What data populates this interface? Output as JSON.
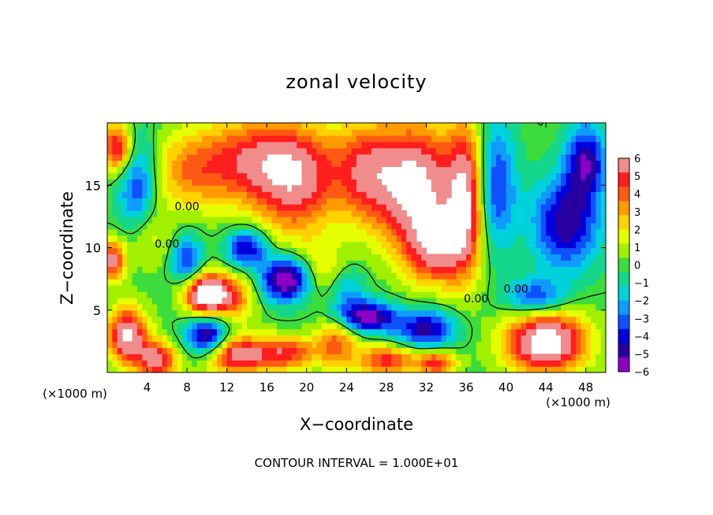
{
  "chart_data": {
    "type": "heatmap",
    "title": "zonal velocity",
    "xlabel": "X−coordinate",
    "ylabel": "Z−coordinate",
    "x_unit_left": "(×1000 m)",
    "x_unit_right": "(×1000 m)",
    "footer": "CONTOUR INTERVAL = 1.000E+01",
    "xlim": [
      0,
      50
    ],
    "ylim": [
      0,
      20
    ],
    "x_ticks": [
      4,
      8,
      12,
      16,
      20,
      24,
      28,
      32,
      36,
      40,
      44,
      48
    ],
    "x_tick_labels": [
      "4",
      "8",
      "12",
      "16",
      "20",
      "24",
      "28",
      "32",
      "36",
      "40",
      "44",
      "48"
    ],
    "y_ticks": [
      5,
      10,
      15
    ],
    "y_tick_labels": [
      "5",
      "10",
      "15"
    ],
    "colorbar": {
      "min": -6,
      "max": 6,
      "ticks": [
        6,
        5,
        4,
        3,
        2,
        1,
        0,
        -1,
        -2,
        -3,
        -4,
        -5,
        -6
      ],
      "tick_labels": [
        "6",
        "5",
        "4",
        "3",
        "2",
        "1",
        "0",
        "−1",
        "−2",
        "−3",
        "−4",
        "−5",
        "−6"
      ],
      "colors": [
        "#f08c8c",
        "#ff1e1e",
        "#ff5a14",
        "#ff9b00",
        "#ffd200",
        "#e6ff00",
        "#a0f000",
        "#3cdc3c",
        "#14d78c",
        "#00d2dc",
        "#0f9bff",
        "#0f50ff",
        "#0000dc",
        "#2800a0",
        "#8c00c8"
      ]
    },
    "contour_labels": [
      {
        "text": "0.00",
        "x": 8.0,
        "y": 13.0
      },
      {
        "text": "0.00",
        "x": 6.0,
        "y": 10.0
      },
      {
        "text": "0.00",
        "x": 37.0,
        "y": 5.6
      },
      {
        "text": "0.00",
        "x": 41.0,
        "y": 6.4
      }
    ],
    "blobs": [
      {
        "x": 16,
        "y": 17,
        "sx": 7,
        "sy": 3.5,
        "a": 5.5
      },
      {
        "x": 19,
        "y": 14,
        "sx": 4,
        "sy": 4,
        "a": 3.5
      },
      {
        "x": 8,
        "y": 16,
        "sx": 4,
        "sy": 3,
        "a": 2.5
      },
      {
        "x": 26,
        "y": 16,
        "sx": 3,
        "sy": 4,
        "a": 4.0
      },
      {
        "x": 31,
        "y": 15,
        "sx": 4,
        "sy": 5,
        "a": 7.0
      },
      {
        "x": 33,
        "y": 10,
        "sx": 3,
        "sy": 3,
        "a": 5.0
      },
      {
        "x": 36,
        "y": 14,
        "sx": 1.8,
        "sy": 6,
        "a": 6.0
      },
      {
        "x": 10,
        "y": 6.3,
        "sx": 2.2,
        "sy": 1.6,
        "a": 9.0
      },
      {
        "x": 13,
        "y": 6.0,
        "sx": 2,
        "sy": 2,
        "a": 3.0
      },
      {
        "x": 2,
        "y": 3,
        "sx": 2,
        "sy": 2.2,
        "a": 7.0
      },
      {
        "x": 5,
        "y": 1,
        "sx": 2,
        "sy": 1.5,
        "a": 6.0
      },
      {
        "x": 13,
        "y": 1.4,
        "sx": 3,
        "sy": 1.5,
        "a": 6.0
      },
      {
        "x": 18,
        "y": 1.6,
        "sx": 3,
        "sy": 1.3,
        "a": 5.0
      },
      {
        "x": 23,
        "y": 2.5,
        "sx": 2,
        "sy": 2,
        "a": 4.0
      },
      {
        "x": 28,
        "y": 1.0,
        "sx": 3,
        "sy": 1.2,
        "a": 5.0
      },
      {
        "x": 33,
        "y": 0.8,
        "sx": 2,
        "sy": 1,
        "a": 5.0
      },
      {
        "x": 44,
        "y": 2.5,
        "sx": 4,
        "sy": 2.5,
        "a": 8.0
      },
      {
        "x": 46,
        "y": 12,
        "sx": 4,
        "sy": 5,
        "a": 2.0
      },
      {
        "x": 22,
        "y": 8,
        "sx": 3,
        "sy": 2,
        "a": 2.5
      },
      {
        "x": 4,
        "y": 11,
        "sx": 2.5,
        "sy": 2.5,
        "a": 2.0
      },
      {
        "x": 0.5,
        "y": 9,
        "sx": 1.2,
        "sy": 1.5,
        "a": 6.0
      },
      {
        "x": 1,
        "y": 18,
        "sx": 1.5,
        "sy": 2,
        "a": 6.0
      },
      {
        "x": 46,
        "y": 12,
        "sx": 3.5,
        "sy": 4,
        "a": -7.0
      },
      {
        "x": 18,
        "y": 7.5,
        "sx": 2.5,
        "sy": 1.7,
        "a": -7.0
      },
      {
        "x": 10,
        "y": 3,
        "sx": 2,
        "sy": 1.5,
        "a": -6.0
      },
      {
        "x": 26,
        "y": 4.5,
        "sx": 3,
        "sy": 1.2,
        "a": -6.0
      },
      {
        "x": 32,
        "y": 3.5,
        "sx": 3,
        "sy": 1.5,
        "a": -5.0
      },
      {
        "x": 43,
        "y": 6,
        "sx": 3,
        "sy": 1.5,
        "a": -4.0
      },
      {
        "x": 39,
        "y": 15,
        "sx": 2,
        "sy": 5,
        "a": -4.0
      },
      {
        "x": 3,
        "y": 15,
        "sx": 2,
        "sy": 4,
        "a": -4.0
      },
      {
        "x": 8,
        "y": 9,
        "sx": 1.5,
        "sy": 2,
        "a": -4.0
      },
      {
        "x": 14,
        "y": 10,
        "sx": 2,
        "sy": 1.5,
        "a": -5.0
      },
      {
        "x": 48,
        "y": 17,
        "sx": 2,
        "sy": 3,
        "a": -5.0
      },
      {
        "x": 24,
        "y": 7,
        "sx": 2,
        "sy": 2,
        "a": -3.0
      }
    ]
  }
}
